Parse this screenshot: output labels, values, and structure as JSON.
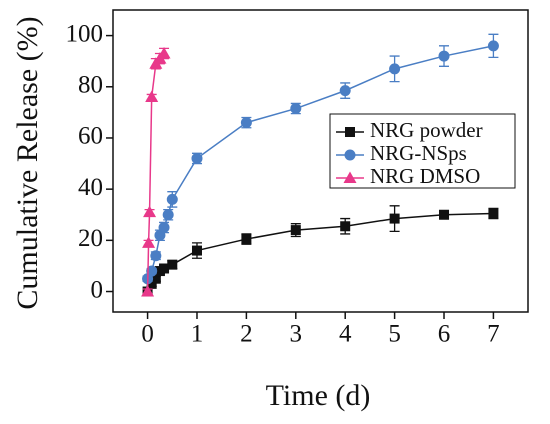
{
  "chart_data": {
    "type": "line",
    "x_label": "Time (d)",
    "y_label": "Cumulative Release (%)",
    "xlim": [
      -0.7,
      7.7
    ],
    "xticks": [
      0,
      1,
      2,
      3,
      4,
      5,
      6,
      7
    ],
    "ylim": [
      -8,
      110
    ],
    "yticks": [
      0,
      20,
      40,
      60,
      80,
      100
    ],
    "legend": "upper right",
    "series": [
      {
        "name": "NRG powder",
        "color": "#111111",
        "marker": "square",
        "x": [
          0,
          0.083,
          0.167,
          0.25,
          0.333,
          0.5,
          1,
          2,
          3,
          4,
          5,
          6,
          7
        ],
        "values": [
          0,
          3,
          5,
          8,
          9,
          10.5,
          16,
          20.5,
          24,
          25.5,
          28.5,
          30,
          30.5
        ],
        "errors": [
          1,
          1,
          1,
          1,
          1,
          1.5,
          3,
          2,
          2.5,
          3,
          5,
          1.5,
          2
        ]
      },
      {
        "name": "NRG-NSps",
        "color": "#4a7ec4",
        "marker": "circle",
        "x": [
          0,
          0.083,
          0.167,
          0.25,
          0.333,
          0.417,
          0.5,
          1,
          2,
          3,
          4,
          5,
          6,
          7
        ],
        "values": [
          5,
          8,
          14,
          22,
          25,
          30,
          36,
          52,
          66,
          71.5,
          78.5,
          87,
          92,
          96
        ],
        "errors": [
          1,
          1,
          1.5,
          2,
          2,
          2,
          3,
          2,
          2,
          2,
          3,
          5,
          4,
          4.5
        ]
      },
      {
        "name": "NRG DMSO",
        "color": "#e8388a",
        "marker": "triangle",
        "x": [
          0,
          0.02,
          0.04,
          0.083,
          0.167,
          0.25,
          0.333
        ],
        "values": [
          0,
          19,
          31,
          76,
          89,
          91,
          93
        ],
        "errors": [
          1,
          1,
          1,
          1,
          2,
          2,
          2
        ]
      }
    ]
  }
}
